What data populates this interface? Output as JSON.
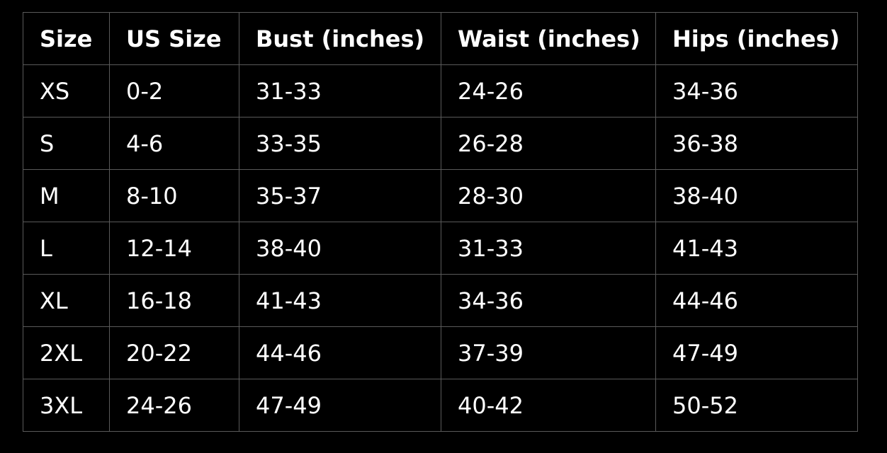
{
  "table": {
    "header": [
      "Size",
      "US Size",
      "Bust (inches)",
      "Waist (inches)",
      "Hips (inches)"
    ],
    "rows": [
      [
        "XS",
        "0-2",
        "31-33",
        "24-26",
        "34-36"
      ],
      [
        "S",
        "4-6",
        "33-35",
        "26-28",
        "36-38"
      ],
      [
        "M",
        "8-10",
        "35-37",
        "28-30",
        "38-40"
      ],
      [
        "L",
        "12-14",
        "38-40",
        "31-33",
        "41-43"
      ],
      [
        "XL",
        "16-18",
        "41-43",
        "34-36",
        "44-46"
      ],
      [
        "2XL",
        "20-22",
        "44-46",
        "37-39",
        "47-49"
      ],
      [
        "3XL",
        "24-26",
        "47-49",
        "40-42",
        "50-52"
      ]
    ]
  }
}
